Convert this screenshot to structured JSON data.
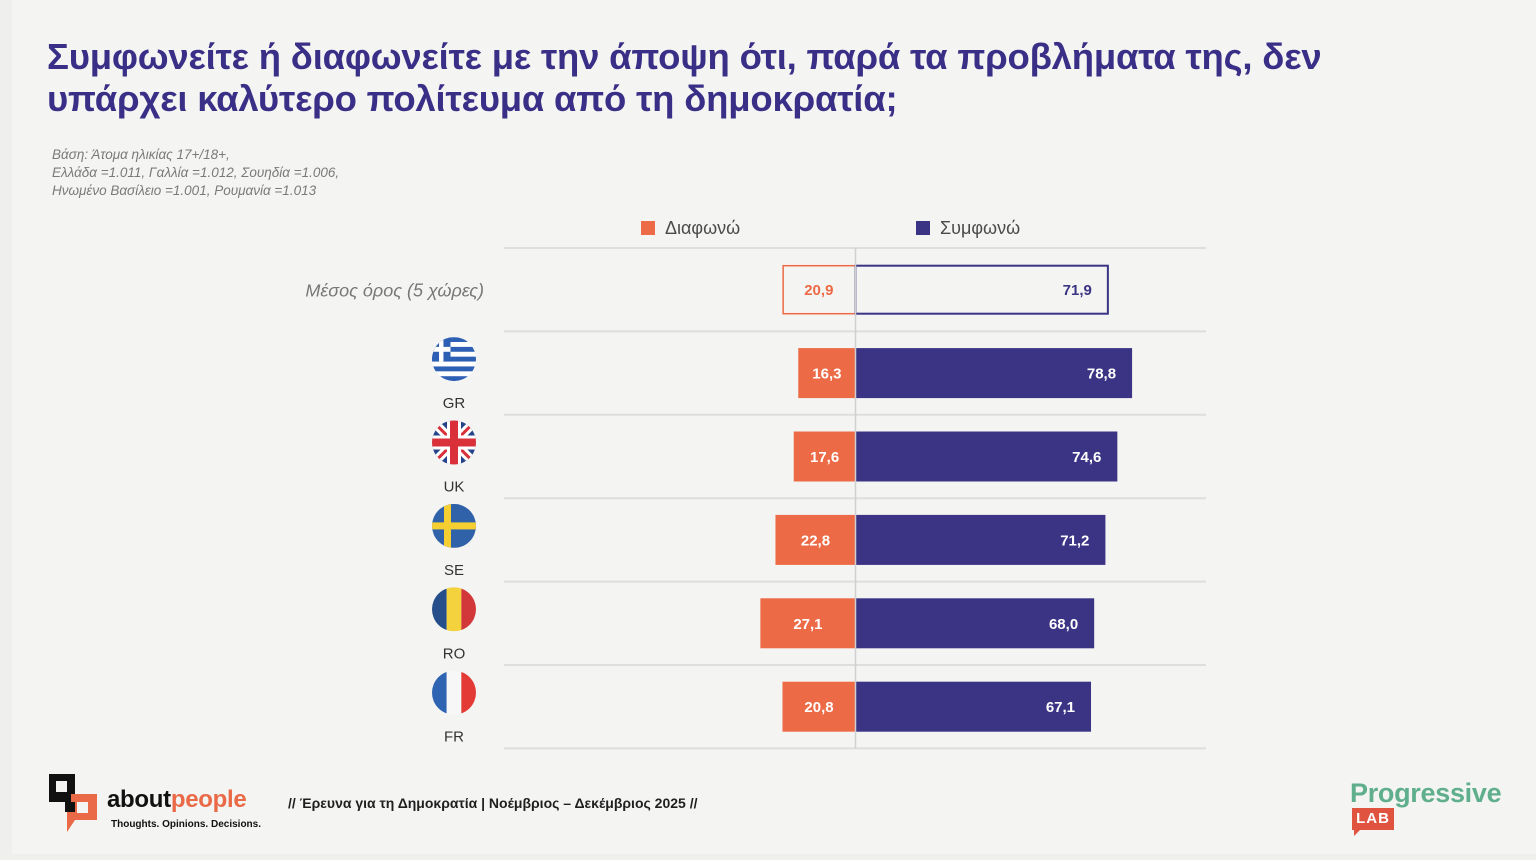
{
  "title": {
    "line1": "Συμφωνείτε ή διαφωνείτε με την άποψη ότι, παρά τα προβλήματα της, δεν",
    "line2": "υπάρχει καλύτερο πολίτευμα από τη δημοκρατία;"
  },
  "base_note": [
    "Βάση:  Άτομα ηλικίας 17+/18+,",
    "Ελλάδα =1.011, Γαλλία =1.012, Σουηδία =1.006,",
    "Ηνωμένο Βασίλειο =1.001, Ρουμανία =1.013"
  ],
  "colors": {
    "disagree": "#ec6a45",
    "agree": "#3b3484",
    "title": "#3a2f86"
  },
  "chart_data": {
    "type": "bar",
    "orientation": "horizontal-diverging",
    "title": "Συμφωνείτε ή διαφωνείτε με την άποψη ότι, παρά τα προβλήματα της, δεν υπάρχει καλύτερο πολίτευμα από τη δημοκρατία;",
    "xlabel": "",
    "ylabel": "",
    "unit": "%",
    "legend_position": "top",
    "categories": [
      "Μέσος όρος (5 χώρες)",
      "GR",
      "UK",
      "SE",
      "RO",
      "FR"
    ],
    "category_flags": [
      "",
      "greece-flag",
      "uk-flag",
      "sweden-flag",
      "romania-flag",
      "france-flag"
    ],
    "series": [
      {
        "name": "Διαφωνώ",
        "key": "disagree",
        "direction": "left",
        "values": [
          20.9,
          16.3,
          17.6,
          22.8,
          27.1,
          20.8
        ],
        "labels": [
          "20,9",
          "16,3",
          "17,6",
          "22,8",
          "27,1",
          "20,8"
        ]
      },
      {
        "name": "Συμφωνώ",
        "key": "agree",
        "direction": "right",
        "values": [
          71.9,
          78.8,
          74.6,
          71.2,
          68.0,
          67.1
        ],
        "labels": [
          "71,9",
          "78,8",
          "74,6",
          "71,2",
          "68,0",
          "67,1"
        ]
      }
    ],
    "highlight_first_row_as_outline": true,
    "grid": false
  },
  "footer": {
    "survey": "// Έρευνα για τη Δημοκρατία | Νοέμβριος – Δεκέμβριος 2025 //",
    "aboutpeople_about": "about",
    "aboutpeople_people": "people",
    "aboutpeople_tagline": "Thoughts. Opinions. Decisions.",
    "progressive_word": "Progressive",
    "progressive_lab": "LAB"
  }
}
